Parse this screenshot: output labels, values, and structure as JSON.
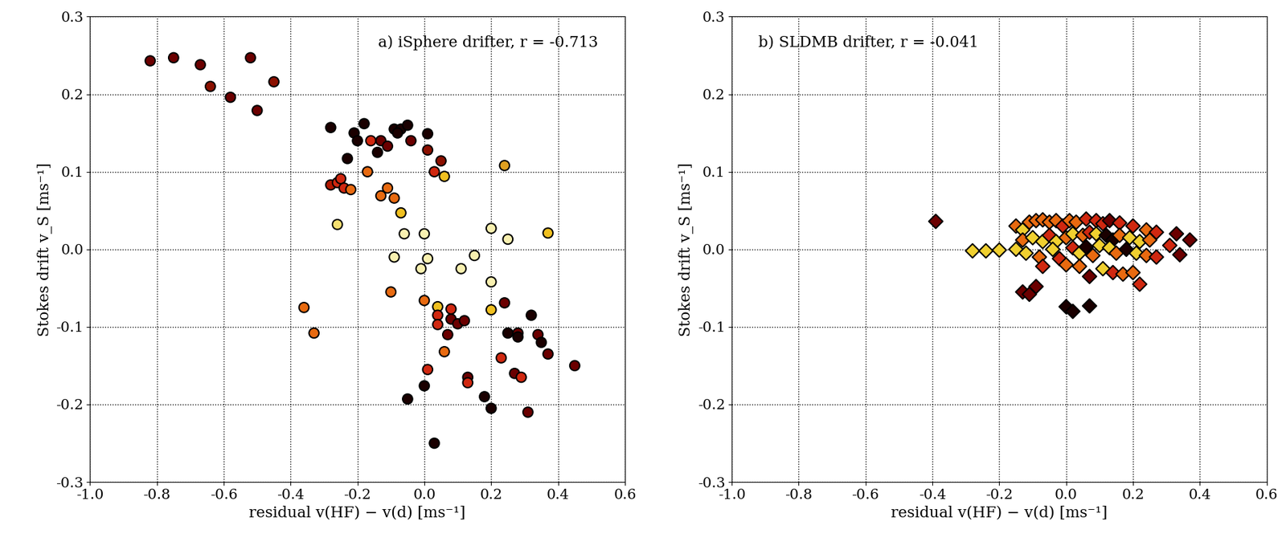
{
  "chart_data": [
    {
      "type": "scatter",
      "annotation": "a) iSphere drifter, r = -0.713",
      "x_label": "residual v(HF) − v(d) [ms⁻¹]",
      "y_label": "Stokes drift v_S [ms⁻¹]",
      "marker": "o",
      "grid": true,
      "xlim": [
        -1.0,
        0.6
      ],
      "xticks": [
        -1.0,
        -0.8,
        -0.6,
        -0.4,
        -0.2,
        0.0,
        0.2,
        0.4,
        0.6
      ],
      "ylim": [
        -0.3,
        0.3
      ],
      "yticks": [
        -0.3,
        -0.2,
        -0.1,
        0.0,
        0.1,
        0.2,
        0.3
      ],
      "x": [
        -0.82,
        -0.75,
        -0.67,
        -0.64,
        -0.58,
        -0.52,
        -0.5,
        -0.45,
        -0.28,
        -0.21,
        -0.2,
        -0.18,
        -0.16,
        -0.14,
        -0.13,
        -0.11,
        -0.09,
        -0.07,
        -0.05,
        -0.08,
        -0.04,
        0.01,
        0.01,
        0.05,
        -0.23,
        -0.28,
        -0.26,
        -0.25,
        -0.24,
        -0.22,
        -0.17,
        -0.13,
        -0.11,
        -0.09,
        0.03,
        0.06,
        0.24,
        -0.26,
        -0.07,
        -0.06,
        -0.09,
        -0.01,
        0.0,
        0.01,
        0.11,
        0.15,
        0.2,
        0.25,
        0.37,
        0.2,
        0.2,
        -0.1,
        -0.36,
        -0.33,
        0.0,
        0.04,
        0.04,
        0.04,
        0.08,
        0.08,
        0.1,
        0.12,
        0.07,
        0.06,
        0.01,
        0.0,
        -0.05,
        0.03,
        0.13,
        0.13,
        0.18,
        0.2,
        0.23,
        0.24,
        0.25,
        0.28,
        0.28,
        0.27,
        0.29,
        0.32,
        0.34,
        0.35,
        0.37,
        0.31,
        0.45
      ],
      "values": [
        0.243,
        0.247,
        0.238,
        0.21,
        0.196,
        0.247,
        0.179,
        0.216,
        0.157,
        0.15,
        0.14,
        0.162,
        0.14,
        0.125,
        0.14,
        0.133,
        0.155,
        0.155,
        0.16,
        0.15,
        0.14,
        0.149,
        0.128,
        0.114,
        0.117,
        0.083,
        0.086,
        0.091,
        0.079,
        0.077,
        0.1,
        0.069,
        0.079,
        0.066,
        0.1,
        0.094,
        0.108,
        0.032,
        0.047,
        0.02,
        -0.01,
        -0.025,
        0.02,
        -0.012,
        -0.025,
        -0.008,
        0.027,
        0.013,
        0.021,
        -0.042,
        -0.078,
        -0.055,
        -0.075,
        -0.108,
        -0.066,
        -0.074,
        -0.085,
        -0.097,
        -0.077,
        -0.09,
        -0.096,
        -0.092,
        -0.11,
        -0.132,
        -0.155,
        -0.176,
        -0.193,
        -0.25,
        -0.165,
        -0.172,
        -0.19,
        -0.205,
        -0.14,
        -0.069,
        -0.108,
        -0.108,
        -0.113,
        -0.16,
        -0.165,
        -0.085,
        -0.11,
        -0.12,
        -0.135,
        -0.21,
        -0.15
      ],
      "colors": [
        "#6b0000",
        "#6b0000",
        "#6b0000",
        "#8b1000",
        "#6b0000",
        "#6b0000",
        "#6b0000",
        "#8b1000",
        "#1a0000",
        "#1a0000",
        "#1a0000",
        "#1a0000",
        "#d02810",
        "#1a0000",
        "#6b0000",
        "#6b0000",
        "#1a0000",
        "#1a0000",
        "#1a0000",
        "#1a0000",
        "#6b0000",
        "#1a0000",
        "#8b1000",
        "#8b1000",
        "#1a0000",
        "#b01800",
        "#d02810",
        "#d02810",
        "#d02810",
        "#e86a10",
        "#e86a10",
        "#e86a10",
        "#e86a10",
        "#e86a10",
        "#d02810",
        "#f0c020",
        "#e0a020",
        "#f5e070",
        "#f0c020",
        "#f8f0b0",
        "#f8f0b0",
        "#f8f0b0",
        "#f8f0b0",
        "#f8f0b0",
        "#f8f0b0",
        "#f8f0b0",
        "#f8f0b0",
        "#f8f0b0",
        "#f0c020",
        "#f8f0b0",
        "#f0c020",
        "#e86a10",
        "#e86a10",
        "#e86a10",
        "#e86a10",
        "#f0c020",
        "#d02810",
        "#d02810",
        "#d02810",
        "#6b0000",
        "#6b0000",
        "#6b0000",
        "#6b0000",
        "#e86a10",
        "#d02810",
        "#1a0000",
        "#1a0000",
        "#1a0000",
        "#6b0000",
        "#d02810",
        "#1a0000",
        "#1a0000",
        "#d02810",
        "#6b0000",
        "#1a0000",
        "#6b0000",
        "#1a0000",
        "#6b0000",
        "#d02810",
        "#1a0000",
        "#6b0000",
        "#1a0000",
        "#6b0000",
        "#6b0000",
        "#6b0000"
      ]
    },
    {
      "type": "scatter",
      "annotation": "b) SLDMB drifter, r = -0.041",
      "x_label": "residual v(HF) − v(d) [ms⁻¹]",
      "y_label": "Stokes drift v_S [ms⁻¹]",
      "marker": "D",
      "grid": true,
      "xlim": [
        -1.0,
        0.6
      ],
      "xticks": [
        -1.0,
        -0.8,
        -0.6,
        -0.4,
        -0.2,
        0.0,
        0.2,
        0.4,
        0.6
      ],
      "ylim": [
        -0.3,
        0.3
      ],
      "yticks": [
        -0.3,
        -0.2,
        -0.1,
        0.0,
        0.1,
        0.2,
        0.3
      ],
      "x": [
        -0.39,
        -0.28,
        -0.24,
        -0.2,
        -0.15,
        -0.15,
        -0.13,
        -0.11,
        -0.09,
        -0.07,
        -0.05,
        -0.03,
        -0.01,
        0.01,
        0.03,
        0.06,
        0.09,
        0.11,
        0.13,
        0.16,
        0.2,
        0.24,
        0.27,
        -0.13,
        -0.1,
        -0.07,
        -0.05,
        -0.03,
        0.0,
        0.02,
        0.05,
        0.07,
        0.09,
        0.12,
        0.14,
        0.16,
        0.19,
        0.22,
        0.25,
        -0.12,
        -0.08,
        -0.04,
        -0.02,
        0.02,
        0.04,
        0.06,
        0.08,
        0.1,
        0.13,
        0.15,
        0.18,
        0.21,
        0.24,
        0.27,
        0.31,
        0.33,
        0.34,
        0.37,
        -0.07,
        0.0,
        0.04,
        0.07,
        0.11,
        0.14,
        0.17,
        0.2,
        -0.13,
        -0.11,
        -0.09,
        0.22,
        0.0,
        0.02,
        0.07
      ],
      "values": [
        0.036,
        -0.002,
        -0.002,
        -0.001,
        0.03,
        0.0,
        0.025,
        0.035,
        0.037,
        0.038,
        0.035,
        0.037,
        0.03,
        0.037,
        0.035,
        0.039,
        0.037,
        0.033,
        0.037,
        0.034,
        0.03,
        0.025,
        0.022,
        0.012,
        0.015,
        0.01,
        0.018,
        0.01,
        0.015,
        0.02,
        0.018,
        0.022,
        0.02,
        0.018,
        0.012,
        0.018,
        0.015,
        0.01,
        0.012,
        -0.005,
        -0.01,
        0.0,
        -0.012,
        0.002,
        -0.005,
        0.003,
        -0.008,
        0.005,
        0.002,
        -0.005,
        0.0,
        -0.005,
        -0.008,
        -0.01,
        0.005,
        0.02,
        -0.007,
        0.012,
        -0.022,
        -0.02,
        -0.022,
        -0.035,
        -0.025,
        -0.03,
        -0.032,
        -0.03,
        -0.055,
        -0.058,
        -0.048,
        -0.045,
        -0.074,
        -0.08,
        -0.073
      ],
      "colors": [
        "#6b0000",
        "#f0d030",
        "#f0d030",
        "#f0d030",
        "#e86a10",
        "#f0d030",
        "#f0d030",
        "#e86a10",
        "#e86a10",
        "#e86a10",
        "#e86a10",
        "#e86a10",
        "#d02810",
        "#e86a10",
        "#e86a10",
        "#d02810",
        "#d02810",
        "#d02810",
        "#6b0000",
        "#d02810",
        "#d02810",
        "#e86a10",
        "#d02810",
        "#e86a10",
        "#f0d030",
        "#f0d030",
        "#d02810",
        "#f0d030",
        "#e86a10",
        "#f0d030",
        "#e86a10",
        "#d02810",
        "#f0d030",
        "#1a0000",
        "#1a0000",
        "#e86a10",
        "#f0d030",
        "#f0d030",
        "#e86a10",
        "#f0d030",
        "#e86a10",
        "#f0d030",
        "#d02810",
        "#d02810",
        "#f0d030",
        "#1a0000",
        "#e86a10",
        "#f0d030",
        "#f0d030",
        "#e86a10",
        "#1a0000",
        "#f0d030",
        "#e86a10",
        "#d02810",
        "#d02810",
        "#6b0000",
        "#6b0000",
        "#6b0000",
        "#d02810",
        "#e86a10",
        "#e86a10",
        "#6b0000",
        "#f0d030",
        "#d02810",
        "#e86a10",
        "#e86a10",
        "#6b0000",
        "#6b0000",
        "#6b0000",
        "#d02810",
        "#1a0000",
        "#1a0000",
        "#1a0000"
      ]
    }
  ]
}
